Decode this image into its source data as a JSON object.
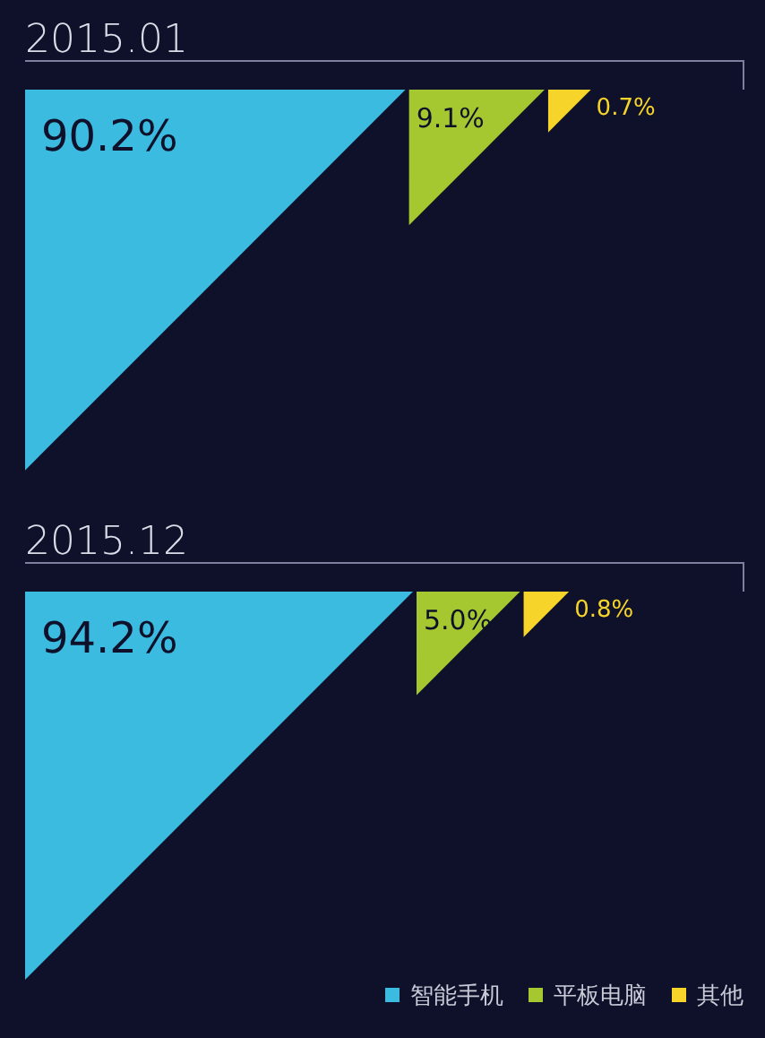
{
  "chart_data": {
    "type": "other",
    "categories": [
      "2015.01",
      "2015.12"
    ],
    "series": [
      {
        "name": "智能手机",
        "color": "#3bbbe0",
        "values": [
          90.2,
          94.2
        ],
        "value_labels": [
          "90.2%",
          "94.2%"
        ]
      },
      {
        "name": "平板电脑",
        "color": "#a5c830",
        "values": [
          9.1,
          5.0
        ],
        "value_labels": [
          "9.1%",
          "5.0%"
        ]
      },
      {
        "name": "其他",
        "color": "#f6d42a",
        "values": [
          0.7,
          0.8
        ],
        "value_labels": [
          "0.7%",
          "0.8%"
        ]
      }
    ],
    "legend": "bottom right"
  }
}
